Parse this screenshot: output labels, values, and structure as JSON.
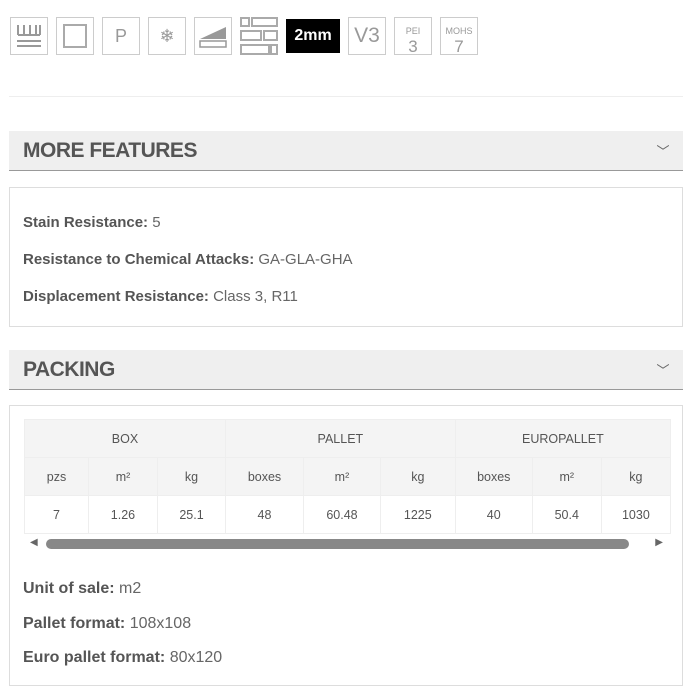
{
  "icons": [
    {
      "name": "underfloor-heating-icon"
    },
    {
      "name": "square-edge-icon"
    },
    {
      "name": "p-icon",
      "label": "P"
    },
    {
      "name": "frost-resistant-icon"
    },
    {
      "name": "slope-icon"
    },
    {
      "name": "brick-pattern-icon"
    },
    {
      "name": "thickness-badge",
      "label": "2mm"
    },
    {
      "name": "v3-icon",
      "label": "V3"
    },
    {
      "name": "pei-icon",
      "top": "PEI",
      "value": "3"
    },
    {
      "name": "mohs-icon",
      "top": "MOHS",
      "value": "7"
    }
  ],
  "more_features": {
    "title": "MORE FEATURES",
    "items": [
      {
        "label": "Stain Resistance:",
        "value": "5"
      },
      {
        "label": "Resistance to Chemical Attacks:",
        "value": "GA-GLA-GHA"
      },
      {
        "label": "Displacement Resistance:",
        "value": "Class 3, R11"
      }
    ]
  },
  "packing": {
    "title": "PACKING",
    "groups": [
      "BOX",
      "PALLET",
      "EUROPALLET"
    ],
    "columns": [
      "pzs",
      "m²",
      "kg",
      "boxes",
      "m²",
      "kg",
      "boxes",
      "m²",
      "kg"
    ],
    "row": [
      "7",
      "1.26",
      "25.1",
      "48",
      "60.48",
      "1225",
      "40",
      "50.4",
      "1030"
    ],
    "items": [
      {
        "label": "Unit of sale:",
        "value": "m2"
      },
      {
        "label": "Pallet format:",
        "value": "108x108"
      },
      {
        "label": "Euro pallet format:",
        "value": "80x120"
      }
    ]
  }
}
